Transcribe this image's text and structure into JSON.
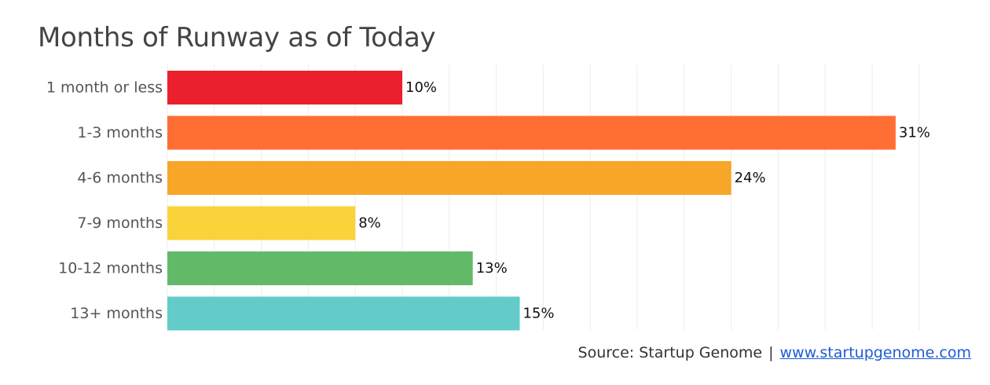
{
  "chart_data": {
    "type": "bar",
    "orientation": "horizontal",
    "title": "Months of Runway as of Today",
    "categories": [
      "1 month or less",
      "1-3 months",
      "4-6 months",
      "7-9 months",
      "10-12 months",
      "13+ months"
    ],
    "values": [
      10,
      31,
      24,
      8,
      13,
      15
    ],
    "value_labels": [
      "10%",
      "31%",
      "24%",
      "8%",
      "13%",
      "15%"
    ],
    "colors": [
      "#ec1f2c",
      "#ff6e33",
      "#f8a628",
      "#fad33b",
      "#62ba69",
      "#63ccc9"
    ],
    "xlim": [
      0,
      32
    ],
    "grid": true,
    "xlabel": "",
    "ylabel": ""
  },
  "source": {
    "text": "Source: Startup Genome",
    "separator": "|",
    "link_text": "www.startupgenome.com"
  }
}
